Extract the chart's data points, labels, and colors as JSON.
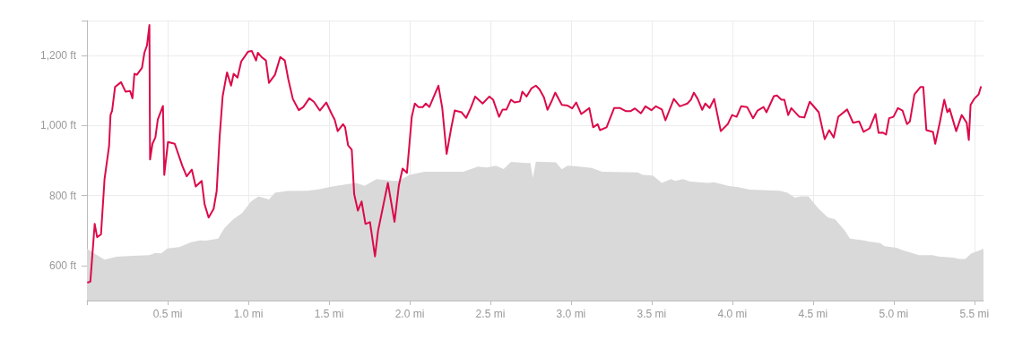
{
  "chart_data": {
    "type": "line",
    "xlim": [
      0,
      5.556
    ],
    "ylim": [
      500,
      1300
    ],
    "xticks": [
      {
        "value": 0,
        "label": null
      },
      {
        "value": 0.5,
        "label": "0.5 mi"
      },
      {
        "value": 1,
        "label": "1.0 mi"
      },
      {
        "value": 1.5,
        "label": "1.5 mi"
      },
      {
        "value": 2,
        "label": "2.0 mi"
      },
      {
        "value": 2.5,
        "label": "2.5 mi"
      },
      {
        "value": 3,
        "label": "3.0 mi"
      },
      {
        "value": 3.5,
        "label": "3.5 mi"
      },
      {
        "value": 4,
        "label": "4.0 mi"
      },
      {
        "value": 4.5,
        "label": "4.5 mi"
      },
      {
        "value": 5,
        "label": "5.0 mi"
      },
      {
        "value": 5.5,
        "label": "5.5 mi"
      }
    ],
    "yticks": [
      {
        "value": 600,
        "label": "600 ft"
      },
      {
        "value": 800,
        "label": "800 ft"
      },
      {
        "value": 1000,
        "label": "1,000 ft"
      },
      {
        "value": 1200,
        "label": "1,200 ft"
      },
      {
        "value": 1300,
        "label": null
      }
    ],
    "grid": true,
    "marker": "none",
    "line_style": "solid",
    "series": [
      {
        "type": "area",
        "color": "#d9d9d9",
        "x": [
          0,
          0.044,
          0.109,
          0.183,
          0.285,
          0.387,
          0.424,
          0.461,
          0.498,
          0.572,
          0.646,
          0.702,
          0.739,
          0.813,
          0.85,
          0.906,
          0.961,
          1.017,
          1.063,
          1.128,
          1.165,
          1.239,
          1.368,
          1.443,
          1.498,
          1.563,
          1.665,
          1.721,
          1.794,
          1.896,
          1.933,
          1.998,
          2.091,
          2.332,
          2.424,
          2.479,
          2.535,
          2.582,
          2.628,
          2.72,
          2.748,
          2.763,
          2.782,
          2.906,
          2.943,
          2.979,
          3.054,
          3.128,
          3.193,
          3.415,
          3.443,
          3.507,
          3.563,
          3.618,
          3.646,
          3.693,
          3.739,
          3.85,
          3.887,
          3.979,
          4.035,
          4.109,
          4.294,
          4.341,
          4.387,
          4.424,
          4.471,
          4.535,
          4.591,
          4.637,
          4.693,
          4.729,
          4.813,
          4.85,
          4.915,
          4.943,
          5.017,
          5.054,
          5.156,
          5.239,
          5.276,
          5.368,
          5.406,
          5.443,
          5.479,
          5.535,
          5.556
        ],
        "values": [
          648,
          635,
          617,
          625,
          628,
          630,
          636,
          635,
          649,
          653,
          667,
          672,
          671,
          677,
          706,
          732,
          750,
          783,
          798,
          789,
          808,
          813,
          814,
          818,
          824,
          829,
          836,
          828,
          847,
          842,
          842,
          859,
          868,
          868,
          883,
          880,
          885,
          876,
          896,
          893,
          893,
          851,
          897,
          895,
          875,
          885,
          883,
          879,
          868,
          866,
          859,
          857,
          836,
          847,
          842,
          847,
          840,
          836,
          838,
          827,
          824,
          817,
          814,
          808,
          794,
          798,
          798,
          762,
          738,
          732,
          702,
          677,
          672,
          668,
          664,
          655,
          651,
          644,
          630,
          630,
          626,
          623,
          619,
          619,
          634,
          644,
          648
        ]
      },
      {
        "color": "#dc0a4a",
        "x": [
          0.002,
          0.021,
          0.048,
          0.063,
          0.087,
          0.109,
          0.137,
          0.146,
          0.156,
          0.174,
          0.211,
          0.239,
          0.267,
          0.282,
          0.294,
          0.309,
          0.341,
          0.356,
          0.372,
          0.387,
          0.391,
          0.406,
          0.424,
          0.439,
          0.471,
          0.479,
          0.502,
          0.544,
          0.591,
          0.618,
          0.65,
          0.674,
          0.711,
          0.729,
          0.754,
          0.785,
          0.804,
          0.822,
          0.841,
          0.868,
          0.893,
          0.909,
          0.933,
          0.956,
          0.998,
          1.022,
          1.048,
          1.059,
          1.082,
          1.109,
          1.128,
          1.165,
          1.198,
          1.226,
          1.248,
          1.276,
          1.313,
          1.341,
          1.378,
          1.406,
          1.443,
          1.483,
          1.517,
          1.535,
          1.554,
          1.587,
          1.6,
          1.618,
          1.641,
          1.656,
          1.679,
          1.702,
          1.726,
          1.754,
          1.785,
          1.804,
          1.832,
          1.865,
          1.906,
          1.933,
          1.956,
          1.983,
          2.013,
          2.032,
          2.054,
          2.082,
          2.1,
          2.122,
          2.178,
          2.202,
          2.229,
          2.257,
          2.279,
          2.322,
          2.35,
          2.378,
          2.406,
          2.452,
          2.494,
          2.517,
          2.554,
          2.576,
          2.6,
          2.628,
          2.65,
          2.683,
          2.698,
          2.724,
          2.754,
          2.782,
          2.804,
          2.832,
          2.854,
          2.878,
          2.902,
          2.943,
          2.979,
          3.007,
          3.032,
          3.063,
          3.087,
          3.113,
          3.137,
          3.165,
          3.179,
          3.22,
          3.267,
          3.304,
          3.341,
          3.368,
          3.396,
          3.433,
          3.461,
          3.498,
          3.526,
          3.563,
          3.585,
          3.637,
          3.674,
          3.721,
          3.743,
          3.761,
          3.785,
          3.813,
          3.832,
          3.859,
          3.887,
          3.928,
          3.971,
          3.998,
          4.026,
          4.054,
          4.091,
          4.128,
          4.156,
          4.193,
          4.211,
          4.257,
          4.276,
          4.304,
          4.322,
          4.346,
          4.365,
          4.415,
          4.446,
          4.479,
          4.535,
          4.572,
          4.6,
          4.628,
          4.656,
          4.711,
          4.748,
          4.785,
          4.813,
          4.85,
          4.887,
          4.906,
          4.933,
          4.952,
          4.971,
          4.998,
          5.026,
          5.054,
          5.082,
          5.1,
          5.128,
          5.165,
          5.183,
          5.202,
          5.243,
          5.257,
          5.285,
          5.313,
          5.332,
          5.346,
          5.387,
          5.421,
          5.452,
          5.465,
          5.476,
          5.498,
          5.526,
          5.541
        ],
        "values": [
          551,
          554,
          719,
          681,
          689,
          847,
          941,
          1030,
          1043,
          1110,
          1124,
          1097,
          1099,
          1078,
          1148,
          1145,
          1165,
          1208,
          1229,
          1287,
          903,
          948,
          966,
          1017,
          1056,
          859,
          953,
          948,
          885,
          855,
          874,
          826,
          842,
          775,
          737,
          762,
          813,
          966,
          1084,
          1152,
          1114,
          1148,
          1137,
          1183,
          1211,
          1213,
          1186,
          1208,
          1196,
          1186,
          1122,
          1145,
          1196,
          1186,
          1132,
          1076,
          1044,
          1053,
          1078,
          1068,
          1043,
          1066,
          1033,
          1017,
          984,
          1004,
          995,
          944,
          931,
          804,
          757,
          783,
          719,
          724,
          626,
          699,
          762,
          836,
          725,
          829,
          877,
          865,
          1025,
          1063,
          1053,
          1053,
          1063,
          1053,
          1114,
          1050,
          919,
          992,
          1043,
          1038,
          1022,
          1050,
          1083,
          1063,
          1083,
          1074,
          1025,
          1046,
          1046,
          1074,
          1066,
          1069,
          1097,
          1083,
          1106,
          1114,
          1104,
          1081,
          1045,
          1068,
          1094,
          1059,
          1057,
          1049,
          1066,
          1033,
          1041,
          1050,
          995,
          1004,
          987,
          995,
          1050,
          1050,
          1041,
          1041,
          1049,
          1035,
          1055,
          1044,
          1055,
          1046,
          1015,
          1076,
          1055,
          1063,
          1074,
          1094,
          1076,
          1045,
          1063,
          1050,
          1076,
          984,
          1004,
          1030,
          1025,
          1055,
          1053,
          1021,
          1043,
          1053,
          1038,
          1084,
          1086,
          1074,
          1074,
          1030,
          1050,
          1025,
          1023,
          1068,
          1038,
          961,
          987,
          966,
          1025,
          1046,
          1008,
          1012,
          982,
          992,
          1033,
          979,
          980,
          974,
          1021,
          1025,
          1050,
          1043,
          1004,
          1012,
          1089,
          1110,
          1110,
          987,
          982,
          948,
          1008,
          1074,
          1038,
          1048,
          984,
          1030,
          1008,
          959,
          1059,
          1076,
          1089,
          1112
        ]
      }
    ]
  }
}
